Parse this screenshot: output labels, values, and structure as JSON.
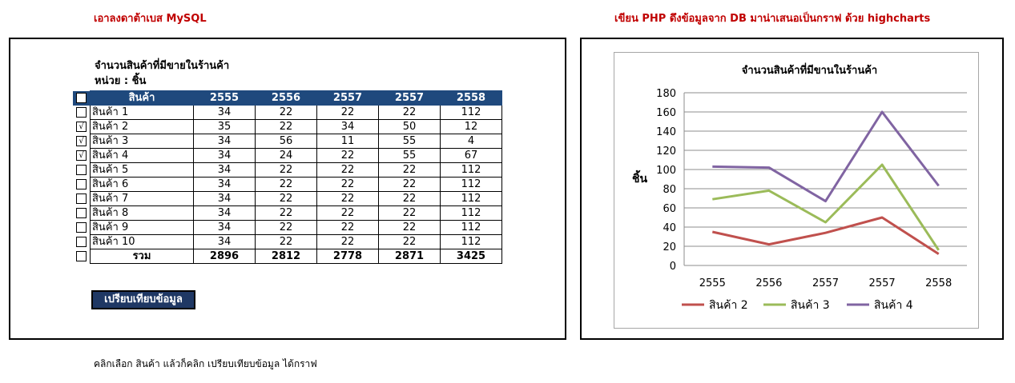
{
  "headings": {
    "left": "เอาลงดาต้าเบส MySQL",
    "right": "เขียน PHP ดึงข้อมูลจาก DB มาน่าเสนอเป็นกราฟ ด้วย highcharts"
  },
  "table_caption": {
    "line1": "จำนวนสินค้าที่มีขายในร้านค้า",
    "line2": "หน่วย : ชิ้น"
  },
  "table": {
    "columns": [
      "สินค้า",
      "2555",
      "2556",
      "2557",
      "2557",
      "2558"
    ],
    "rows": [
      {
        "checked": false,
        "check_mark": "",
        "name": "สินค้า 1",
        "values": [
          "34",
          "22",
          "22",
          "22",
          "112"
        ]
      },
      {
        "checked": true,
        "check_mark": "√",
        "name": "สินค้า 2",
        "values": [
          "35",
          "22",
          "34",
          "50",
          "12"
        ]
      },
      {
        "checked": true,
        "check_mark": "√",
        "name": "สินค้า 3",
        "values": [
          "34",
          "56",
          "11",
          "55",
          "4"
        ]
      },
      {
        "checked": true,
        "check_mark": "√",
        "name": "สินค้า 4",
        "values": [
          "34",
          "24",
          "22",
          "55",
          "67"
        ]
      },
      {
        "checked": false,
        "check_mark": "",
        "name": "สินค้า 5",
        "values": [
          "34",
          "22",
          "22",
          "22",
          "112"
        ]
      },
      {
        "checked": false,
        "check_mark": "",
        "name": "สินค้า 6",
        "values": [
          "34",
          "22",
          "22",
          "22",
          "112"
        ]
      },
      {
        "checked": false,
        "check_mark": "",
        "name": "สินค้า 7",
        "values": [
          "34",
          "22",
          "22",
          "22",
          "112"
        ]
      },
      {
        "checked": false,
        "check_mark": "",
        "name": "สินค้า 8",
        "values": [
          "34",
          "22",
          "22",
          "22",
          "112"
        ]
      },
      {
        "checked": false,
        "check_mark": "",
        "name": "สินค้า 9",
        "values": [
          "34",
          "22",
          "22",
          "22",
          "112"
        ]
      },
      {
        "checked": false,
        "check_mark": "",
        "name": "สินค้า 10",
        "values": [
          "34",
          "22",
          "22",
          "22",
          "112"
        ]
      }
    ],
    "total": {
      "label": "รวม",
      "values": [
        "2896",
        "2812",
        "2778",
        "2871",
        "3425"
      ]
    }
  },
  "compare_button_label": "เปรียบเทียบข้อมูล",
  "footnote": "คลิกเลือก สินค้า แล้วก็คลิก เปรียบเทียบข้อมูล ได้กราฟ",
  "chart_data": {
    "type": "line",
    "title": "จำนวนสินค้าที่มีขานในร้านค้า",
    "xlabel": "",
    "ylabel": "ชิ้น",
    "categories": [
      "2555",
      "2556",
      "2557",
      "2557",
      "2558"
    ],
    "ylim": [
      0,
      180
    ],
    "yticks": [
      0,
      20,
      40,
      60,
      80,
      100,
      120,
      140,
      160,
      180
    ],
    "grid": true,
    "legend": "bottom",
    "stacked": true,
    "series": [
      {
        "name": "สินค้า 2",
        "color": "#c0504d",
        "values": [
          35,
          22,
          34,
          50,
          12
        ]
      },
      {
        "name": "สินค้า 3",
        "color": "#9bbb59",
        "values": [
          34,
          56,
          11,
          55,
          4
        ]
      },
      {
        "name": "สินค้า 4",
        "color": "#8064a2",
        "values": [
          34,
          24,
          22,
          55,
          67
        ]
      }
    ]
  }
}
